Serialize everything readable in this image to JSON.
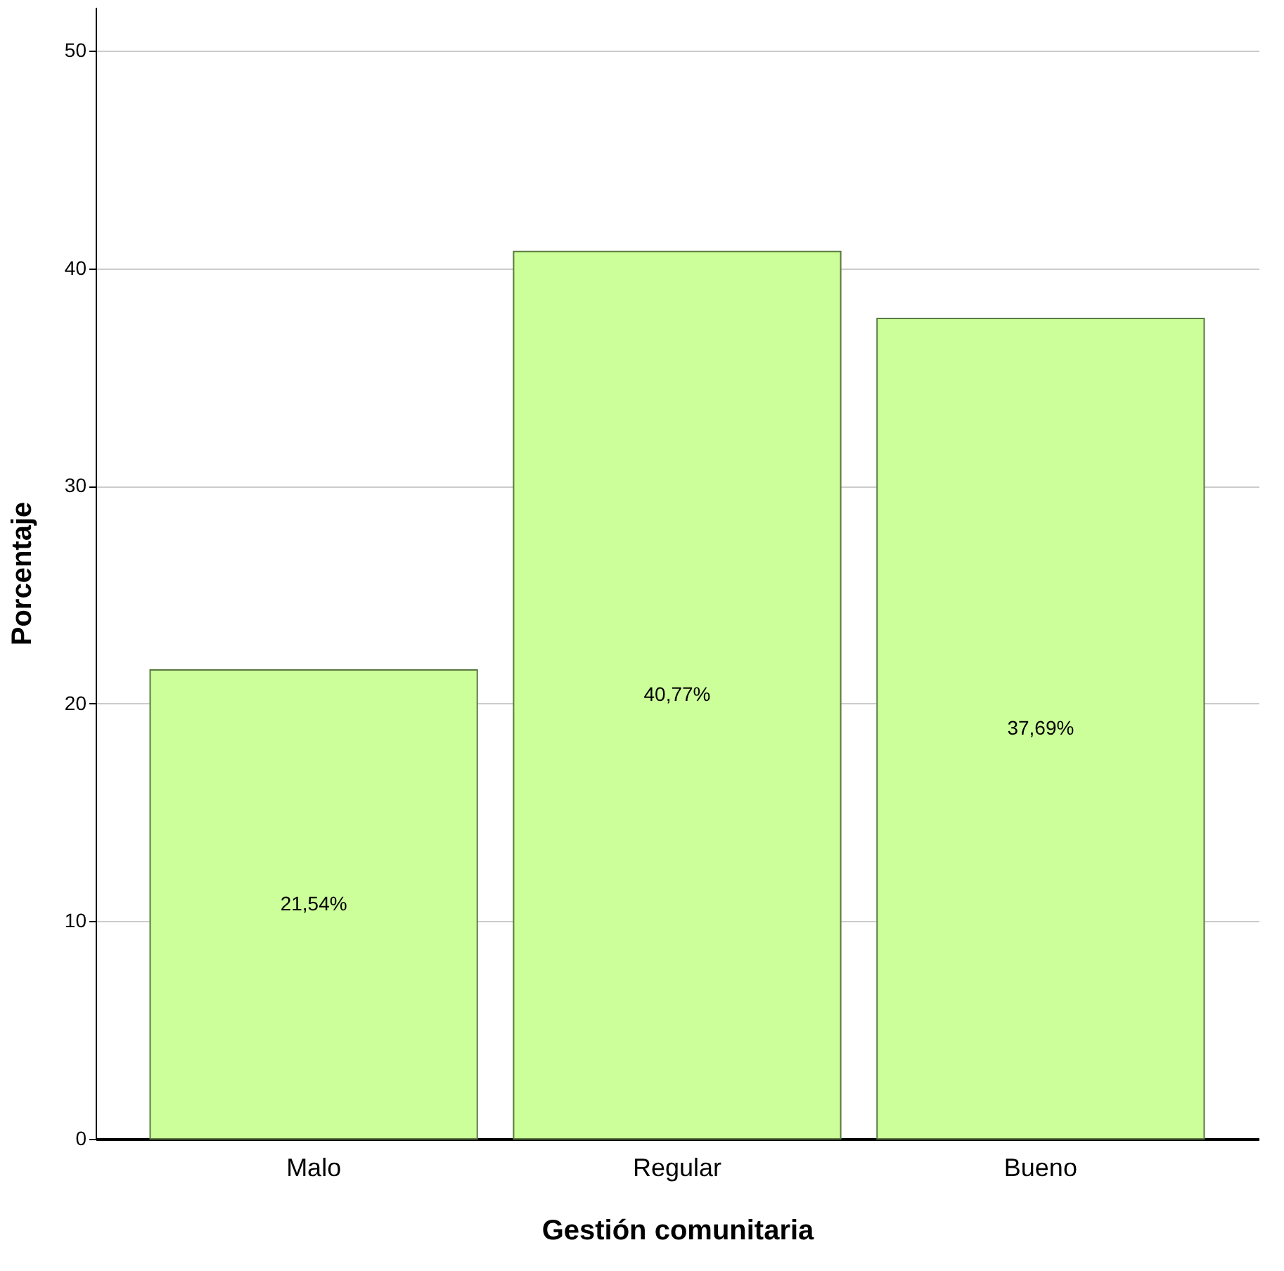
{
  "chart_data": {
    "type": "bar",
    "xlabel": "Gestión comunitaria",
    "ylabel": "Porcentaje",
    "categories": [
      "Malo",
      "Regular",
      "Bueno"
    ],
    "values": [
      21.54,
      40.77,
      37.69
    ],
    "value_labels": [
      "21,54%",
      "40,77%",
      "37,69%"
    ],
    "color": "#ccff99",
    "ylim": [
      0,
      52
    ],
    "yticks": [
      0,
      10,
      20,
      30,
      40,
      50
    ],
    "grid": "y"
  }
}
